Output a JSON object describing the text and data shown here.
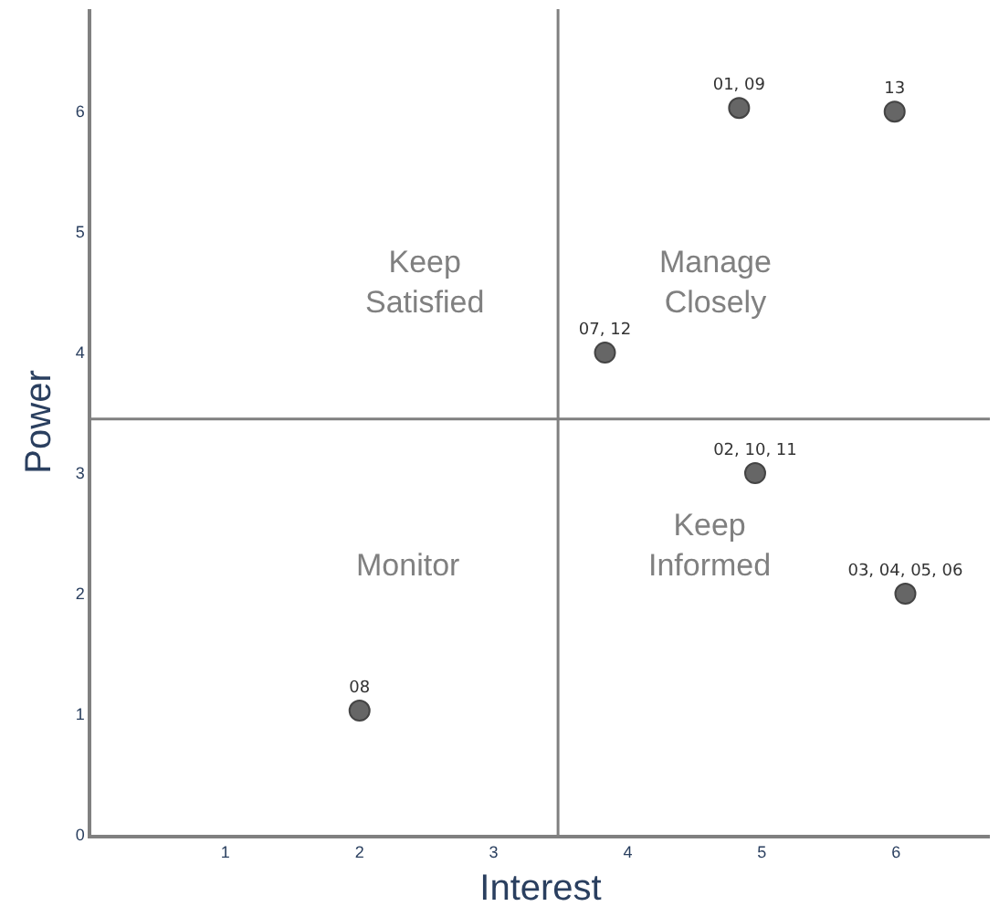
{
  "chart_data": {
    "type": "scatter",
    "xlabel": "Interest",
    "ylabel": "Power",
    "x": [
      4.83,
      5.99,
      3.83,
      4.95,
      6.07,
      2.0
    ],
    "series": [
      {
        "color": "#666666",
        "values": [
          6.03,
          6.0,
          4.0,
          3.0,
          2.0,
          1.03
        ]
      }
    ],
    "value_labels": [
      "01, 09",
      "13",
      "07, 12",
      "02, 10, 11",
      "03, 04, 05, 06",
      "08"
    ],
    "xlim": [
      0,
      6.7
    ],
    "ylim": [
      0,
      6.85
    ],
    "xticks": [
      1,
      2,
      3,
      4,
      5,
      6
    ],
    "yticks": [
      0,
      1,
      2,
      3,
      4,
      5,
      6
    ],
    "ref_lines": [
      {
        "axis": "x",
        "value": 3.48,
        "color": "#808080"
      },
      {
        "axis": "y",
        "value": 3.45,
        "color": "#808080"
      }
    ],
    "annotations": [
      "Keep\nSatisfied",
      "Manage\nClosely",
      "Monitor",
      "Keep\nInformed"
    ],
    "marker": "circle",
    "grid": false
  }
}
